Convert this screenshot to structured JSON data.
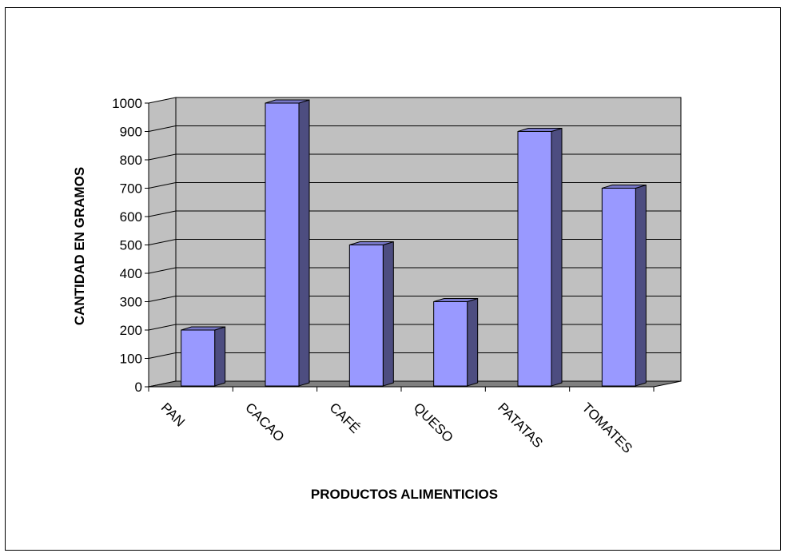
{
  "chart_data": {
    "type": "bar",
    "categories": [
      "PAN",
      "CACAO",
      "CAFÉ",
      "QUESO",
      "PATATAS",
      "TOMATES"
    ],
    "values": [
      200,
      1000,
      500,
      300,
      900,
      700
    ],
    "title": "",
    "xlabel": "PRODUCTOS ALIMENTICIOS",
    "ylabel": "CANTIDAD EN GRAMOS",
    "ylim": [
      0,
      1000
    ],
    "yticks": [
      "0",
      "100",
      "200",
      "300",
      "400",
      "500",
      "600",
      "700",
      "800",
      "900",
      "1000"
    ],
    "grid": true,
    "style": "3d-column",
    "colors": {
      "bar_front": "#9999ff",
      "bar_side": "#4d4d80",
      "bar_top": "#7777c8",
      "wall": "#c0c0c0",
      "floor": "#808080",
      "gridline": "#000000"
    }
  }
}
